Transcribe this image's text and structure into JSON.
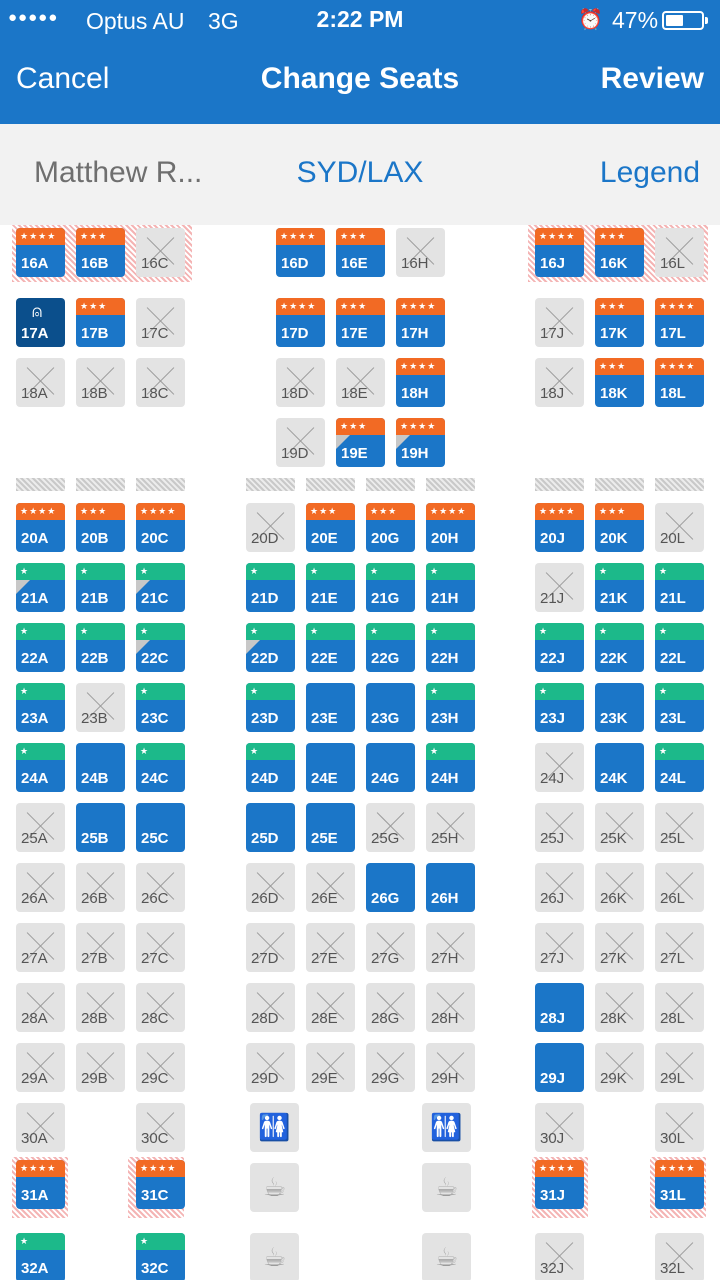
{
  "status_bar": {
    "signal": "●●●●●",
    "carrier": "Optus AU",
    "network": "3G",
    "time": "2:22 PM",
    "battery": "47%",
    "alarm_icon": "alarm-clock-icon",
    "battery_icon": "battery-icon"
  },
  "nav": {
    "cancel_label": "Cancel",
    "title": "Change Seats",
    "review_label": "Review"
  },
  "sub": {
    "passenger": "Matthew R...",
    "route": "SYD/LAX",
    "legend_label": "Legend"
  },
  "colors": {
    "primary": "#1b76c8",
    "selected": "#0b4f8c",
    "premium": "#f26a24",
    "extra_legroom": "#1cb98a",
    "occupied": "#e3e3e3"
  },
  "seats": [
    {
      "id": "16A",
      "c": 0,
      "r": 0,
      "s": "avail",
      "b": "orange",
      "t": "★★★★",
      "h": 1
    },
    {
      "id": "16B",
      "c": 1,
      "r": 0,
      "s": "avail",
      "b": "orange",
      "t": "★★★",
      "h": 1
    },
    {
      "id": "16C",
      "c": 2,
      "r": 0,
      "s": "occ",
      "h": 1
    },
    {
      "id": "16D",
      "c": 4,
      "r": 0,
      "s": "avail",
      "b": "orange",
      "t": "★★★★"
    },
    {
      "id": "16E",
      "c": 5,
      "r": 0,
      "s": "avail",
      "b": "orange",
      "t": "★★★"
    },
    {
      "id": "16H",
      "c": 6,
      "r": 0,
      "s": "occ"
    },
    {
      "id": "16J",
      "c": 8,
      "r": 0,
      "s": "avail",
      "b": "orange",
      "t": "★★★★",
      "h": 1
    },
    {
      "id": "16K",
      "c": 9,
      "r": 0,
      "s": "avail",
      "b": "orange",
      "t": "★★★",
      "h": 1
    },
    {
      "id": "16L",
      "c": 10,
      "r": 0,
      "s": "occ",
      "h": 1
    },
    {
      "id": "17A",
      "c": 0,
      "r": 1,
      "s": "sel"
    },
    {
      "id": "17B",
      "c": 1,
      "r": 1,
      "s": "avail",
      "b": "orange",
      "t": "★★★"
    },
    {
      "id": "17C",
      "c": 2,
      "r": 1,
      "s": "occ"
    },
    {
      "id": "17D",
      "c": 4,
      "r": 1,
      "s": "avail",
      "b": "orange",
      "t": "★★★★"
    },
    {
      "id": "17E",
      "c": 5,
      "r": 1,
      "s": "avail",
      "b": "orange",
      "t": "★★★"
    },
    {
      "id": "17H",
      "c": 6,
      "r": 1,
      "s": "avail",
      "b": "orange",
      "t": "★★★★"
    },
    {
      "id": "17J",
      "c": 8,
      "r": 1,
      "s": "occ"
    },
    {
      "id": "17K",
      "c": 9,
      "r": 1,
      "s": "avail",
      "b": "orange",
      "t": "★★★"
    },
    {
      "id": "17L",
      "c": 10,
      "r": 1,
      "s": "avail",
      "b": "orange",
      "t": "★★★★"
    },
    {
      "id": "18A",
      "c": 0,
      "r": 2,
      "s": "occ"
    },
    {
      "id": "18B",
      "c": 1,
      "r": 2,
      "s": "occ"
    },
    {
      "id": "18C",
      "c": 2,
      "r": 2,
      "s": "occ"
    },
    {
      "id": "18D",
      "c": 4,
      "r": 2,
      "s": "occ"
    },
    {
      "id": "18E",
      "c": 5,
      "r": 2,
      "s": "occ"
    },
    {
      "id": "18H",
      "c": 6,
      "r": 2,
      "s": "avail",
      "b": "orange",
      "t": "★★★★"
    },
    {
      "id": "18J",
      "c": 8,
      "r": 2,
      "s": "occ"
    },
    {
      "id": "18K",
      "c": 9,
      "r": 2,
      "s": "avail",
      "b": "orange",
      "t": "★★★"
    },
    {
      "id": "18L",
      "c": 10,
      "r": 2,
      "s": "avail",
      "b": "orange",
      "t": "★★★★"
    },
    {
      "id": "19D",
      "c": 4,
      "r": 3,
      "s": "occ"
    },
    {
      "id": "19E",
      "c": 5,
      "r": 3,
      "s": "avail",
      "b": "orange",
      "t": "★★★",
      "tri": 1
    },
    {
      "id": "19H",
      "c": 6,
      "r": 3,
      "s": "avail",
      "b": "orange",
      "t": "★★★★",
      "tri": 1
    },
    {
      "id": "20A",
      "c": 0,
      "r": 4,
      "s": "avail",
      "b": "orange",
      "t": "★★★★"
    },
    {
      "id": "20B",
      "c": 1,
      "r": 4,
      "s": "avail",
      "b": "orange",
      "t": "★★★"
    },
    {
      "id": "20C",
      "c": 2,
      "r": 4,
      "s": "avail",
      "b": "orange",
      "t": "★★★★"
    },
    {
      "id": "20D",
      "c": 3,
      "r": 4,
      "s": "occ"
    },
    {
      "id": "20E",
      "c": 4,
      "r": 4,
      "s": "avail",
      "b": "orange",
      "t": "★★★"
    },
    {
      "id": "20G",
      "c": 5,
      "r": 4,
      "s": "avail",
      "b": "orange",
      "t": "★★★"
    },
    {
      "id": "20H",
      "c": 6,
      "r": 4,
      "s": "avail",
      "b": "orange",
      "t": "★★★★"
    },
    {
      "id": "20J",
      "c": 8,
      "r": 4,
      "s": "avail",
      "b": "orange",
      "t": "★★★★"
    },
    {
      "id": "20K",
      "c": 9,
      "r": 4,
      "s": "avail",
      "b": "orange",
      "t": "★★★"
    },
    {
      "id": "20L",
      "c": 10,
      "r": 4,
      "s": "occ"
    },
    {
      "id": "21A",
      "c": 0,
      "r": 5,
      "s": "avail",
      "b": "green",
      "t": "★",
      "tri": 1
    },
    {
      "id": "21B",
      "c": 1,
      "r": 5,
      "s": "avail",
      "b": "green",
      "t": "★"
    },
    {
      "id": "21C",
      "c": 2,
      "r": 5,
      "s": "avail",
      "b": "green",
      "t": "★",
      "tri": 1
    },
    {
      "id": "21D",
      "c": 3,
      "r": 5,
      "s": "avail",
      "b": "green",
      "t": "★"
    },
    {
      "id": "21E",
      "c": 4,
      "r": 5,
      "s": "avail",
      "b": "green",
      "t": "★"
    },
    {
      "id": "21G",
      "c": 5,
      "r": 5,
      "s": "avail",
      "b": "green",
      "t": "★"
    },
    {
      "id": "21H",
      "c": 6,
      "r": 5,
      "s": "avail",
      "b": "green",
      "t": "★"
    },
    {
      "id": "21J",
      "c": 8,
      "r": 5,
      "s": "occ"
    },
    {
      "id": "21K",
      "c": 9,
      "r": 5,
      "s": "avail",
      "b": "green",
      "t": "★"
    },
    {
      "id": "21L",
      "c": 10,
      "r": 5,
      "s": "avail",
      "b": "green",
      "t": "★"
    },
    {
      "id": "22A",
      "c": 0,
      "r": 6,
      "s": "avail",
      "b": "green",
      "t": "★"
    },
    {
      "id": "22B",
      "c": 1,
      "r": 6,
      "s": "avail",
      "b": "green",
      "t": "★"
    },
    {
      "id": "22C",
      "c": 2,
      "r": 6,
      "s": "avail",
      "b": "green",
      "t": "★",
      "tri": 1
    },
    {
      "id": "22D",
      "c": 3,
      "r": 6,
      "s": "avail",
      "b": "green",
      "t": "★",
      "tri": 1
    },
    {
      "id": "22E",
      "c": 4,
      "r": 6,
      "s": "avail",
      "b": "green",
      "t": "★"
    },
    {
      "id": "22G",
      "c": 5,
      "r": 6,
      "s": "avail",
      "b": "green",
      "t": "★"
    },
    {
      "id": "22H",
      "c": 6,
      "r": 6,
      "s": "avail",
      "b": "green",
      "t": "★"
    },
    {
      "id": "22J",
      "c": 8,
      "r": 6,
      "s": "avail",
      "b": "green",
      "t": "★"
    },
    {
      "id": "22K",
      "c": 9,
      "r": 6,
      "s": "avail",
      "b": "green",
      "t": "★"
    },
    {
      "id": "22L",
      "c": 10,
      "r": 6,
      "s": "avail",
      "b": "green",
      "t": "★"
    },
    {
      "id": "23A",
      "c": 0,
      "r": 7,
      "s": "avail",
      "b": "green",
      "t": "★"
    },
    {
      "id": "23B",
      "c": 1,
      "r": 7,
      "s": "occ"
    },
    {
      "id": "23C",
      "c": 2,
      "r": 7,
      "s": "avail",
      "b": "green",
      "t": "★"
    },
    {
      "id": "23D",
      "c": 3,
      "r": 7,
      "s": "avail",
      "b": "green",
      "t": "★"
    },
    {
      "id": "23E",
      "c": 4,
      "r": 7,
      "s": "avail"
    },
    {
      "id": "23G",
      "c": 5,
      "r": 7,
      "s": "avail"
    },
    {
      "id": "23H",
      "c": 6,
      "r": 7,
      "s": "avail",
      "b": "green",
      "t": "★"
    },
    {
      "id": "23J",
      "c": 8,
      "r": 7,
      "s": "avail",
      "b": "green",
      "t": "★"
    },
    {
      "id": "23K",
      "c": 9,
      "r": 7,
      "s": "avail"
    },
    {
      "id": "23L",
      "c": 10,
      "r": 7,
      "s": "avail",
      "b": "green",
      "t": "★"
    },
    {
      "id": "24A",
      "c": 0,
      "r": 8,
      "s": "avail",
      "b": "green",
      "t": "★"
    },
    {
      "id": "24B",
      "c": 1,
      "r": 8,
      "s": "avail"
    },
    {
      "id": "24C",
      "c": 2,
      "r": 8,
      "s": "avail",
      "b": "green",
      "t": "★"
    },
    {
      "id": "24D",
      "c": 3,
      "r": 8,
      "s": "avail",
      "b": "green",
      "t": "★"
    },
    {
      "id": "24E",
      "c": 4,
      "r": 8,
      "s": "avail"
    },
    {
      "id": "24G",
      "c": 5,
      "r": 8,
      "s": "avail"
    },
    {
      "id": "24H",
      "c": 6,
      "r": 8,
      "s": "avail",
      "b": "green",
      "t": "★"
    },
    {
      "id": "24J",
      "c": 8,
      "r": 8,
      "s": "occ"
    },
    {
      "id": "24K",
      "c": 9,
      "r": 8,
      "s": "avail"
    },
    {
      "id": "24L",
      "c": 10,
      "r": 8,
      "s": "avail",
      "b": "green",
      "t": "★"
    },
    {
      "id": "25A",
      "c": 0,
      "r": 9,
      "s": "occ"
    },
    {
      "id": "25B",
      "c": 1,
      "r": 9,
      "s": "avail"
    },
    {
      "id": "25C",
      "c": 2,
      "r": 9,
      "s": "avail"
    },
    {
      "id": "25D",
      "c": 3,
      "r": 9,
      "s": "avail"
    },
    {
      "id": "25E",
      "c": 4,
      "r": 9,
      "s": "avail"
    },
    {
      "id": "25G",
      "c": 5,
      "r": 9,
      "s": "occ"
    },
    {
      "id": "25H",
      "c": 6,
      "r": 9,
      "s": "occ"
    },
    {
      "id": "25J",
      "c": 8,
      "r": 9,
      "s": "occ"
    },
    {
      "id": "25K",
      "c": 9,
      "r": 9,
      "s": "occ"
    },
    {
      "id": "25L",
      "c": 10,
      "r": 9,
      "s": "occ"
    },
    {
      "id": "26A",
      "c": 0,
      "r": 10,
      "s": "occ"
    },
    {
      "id": "26B",
      "c": 1,
      "r": 10,
      "s": "occ"
    },
    {
      "id": "26C",
      "c": 2,
      "r": 10,
      "s": "occ"
    },
    {
      "id": "26D",
      "c": 3,
      "r": 10,
      "s": "occ"
    },
    {
      "id": "26E",
      "c": 4,
      "r": 10,
      "s": "occ"
    },
    {
      "id": "26G",
      "c": 5,
      "r": 10,
      "s": "avail"
    },
    {
      "id": "26H",
      "c": 6,
      "r": 10,
      "s": "avail"
    },
    {
      "id": "26J",
      "c": 8,
      "r": 10,
      "s": "occ"
    },
    {
      "id": "26K",
      "c": 9,
      "r": 10,
      "s": "occ"
    },
    {
      "id": "26L",
      "c": 10,
      "r": 10,
      "s": "occ"
    },
    {
      "id": "27A",
      "c": 0,
      "r": 11,
      "s": "occ"
    },
    {
      "id": "27B",
      "c": 1,
      "r": 11,
      "s": "occ"
    },
    {
      "id": "27C",
      "c": 2,
      "r": 11,
      "s": "occ"
    },
    {
      "id": "27D",
      "c": 3,
      "r": 11,
      "s": "occ"
    },
    {
      "id": "27E",
      "c": 4,
      "r": 11,
      "s": "occ"
    },
    {
      "id": "27G",
      "c": 5,
      "r": 11,
      "s": "occ"
    },
    {
      "id": "27H",
      "c": 6,
      "r": 11,
      "s": "occ"
    },
    {
      "id": "27J",
      "c": 8,
      "r": 11,
      "s": "occ"
    },
    {
      "id": "27K",
      "c": 9,
      "r": 11,
      "s": "occ"
    },
    {
      "id": "27L",
      "c": 10,
      "r": 11,
      "s": "occ"
    },
    {
      "id": "28A",
      "c": 0,
      "r": 12,
      "s": "occ"
    },
    {
      "id": "28B",
      "c": 1,
      "r": 12,
      "s": "occ"
    },
    {
      "id": "28C",
      "c": 2,
      "r": 12,
      "s": "occ"
    },
    {
      "id": "28D",
      "c": 3,
      "r": 12,
      "s": "occ"
    },
    {
      "id": "28E",
      "c": 4,
      "r": 12,
      "s": "occ"
    },
    {
      "id": "28G",
      "c": 5,
      "r": 12,
      "s": "occ"
    },
    {
      "id": "28H",
      "c": 6,
      "r": 12,
      "s": "occ"
    },
    {
      "id": "28J",
      "c": 8,
      "r": 12,
      "s": "avail"
    },
    {
      "id": "28K",
      "c": 9,
      "r": 12,
      "s": "occ"
    },
    {
      "id": "28L",
      "c": 10,
      "r": 12,
      "s": "occ"
    },
    {
      "id": "29A",
      "c": 0,
      "r": 13,
      "s": "occ"
    },
    {
      "id": "29B",
      "c": 1,
      "r": 13,
      "s": "occ"
    },
    {
      "id": "29C",
      "c": 2,
      "r": 13,
      "s": "occ"
    },
    {
      "id": "29D",
      "c": 3,
      "r": 13,
      "s": "occ"
    },
    {
      "id": "29E",
      "c": 4,
      "r": 13,
      "s": "occ"
    },
    {
      "id": "29G",
      "c": 5,
      "r": 13,
      "s": "occ"
    },
    {
      "id": "29H",
      "c": 6,
      "r": 13,
      "s": "occ"
    },
    {
      "id": "29J",
      "c": 8,
      "r": 13,
      "s": "avail"
    },
    {
      "id": "29K",
      "c": 9,
      "r": 13,
      "s": "occ"
    },
    {
      "id": "29L",
      "c": 10,
      "r": 13,
      "s": "occ"
    },
    {
      "id": "30A",
      "c": 0,
      "r": 14,
      "s": "occ"
    },
    {
      "id": "30C",
      "c": 2,
      "r": 14,
      "s": "occ"
    },
    {
      "id": "30J",
      "c": 8,
      "r": 14,
      "s": "occ"
    },
    {
      "id": "30L",
      "c": 10,
      "r": 14,
      "s": "occ"
    },
    {
      "id": "31A",
      "c": 0,
      "r": 15,
      "s": "avail",
      "b": "orange",
      "t": "★★★★",
      "h": 1
    },
    {
      "id": "31C",
      "c": 2,
      "r": 15,
      "s": "avail",
      "b": "orange",
      "t": "★★★★",
      "h": 1
    },
    {
      "id": "31J",
      "c": 8,
      "r": 15,
      "s": "avail",
      "b": "orange",
      "t": "★★★★",
      "h": 1
    },
    {
      "id": "31L",
      "c": 10,
      "r": 15,
      "s": "avail",
      "b": "orange",
      "t": "★★★★",
      "h": 1
    },
    {
      "id": "32A",
      "c": 0,
      "r": 16,
      "s": "avail",
      "b": "green",
      "t": "★"
    },
    {
      "id": "32C",
      "c": 2,
      "r": 16,
      "s": "avail",
      "b": "green",
      "t": "★"
    },
    {
      "id": "32J",
      "c": 8,
      "r": 16,
      "s": "occ"
    },
    {
      "id": "32L",
      "c": 10,
      "r": 16,
      "s": "occ"
    }
  ],
  "facilities": [
    {
      "name": "restroom-icon",
      "glyph": "🚻",
      "c": 4,
      "r": 14
    },
    {
      "name": "restroom-icon",
      "glyph": "🚻",
      "c": 7,
      "r": 14
    },
    {
      "name": "galley-icon",
      "glyph": "☕",
      "c": 4,
      "r": 15
    },
    {
      "name": "galley-icon",
      "glyph": "☕",
      "c": 7,
      "r": 15
    },
    {
      "name": "galley-icon",
      "glyph": "☕",
      "c": 4,
      "r": 16
    },
    {
      "name": "galley-icon",
      "glyph": "☕",
      "c": 7,
      "r": 16
    }
  ]
}
